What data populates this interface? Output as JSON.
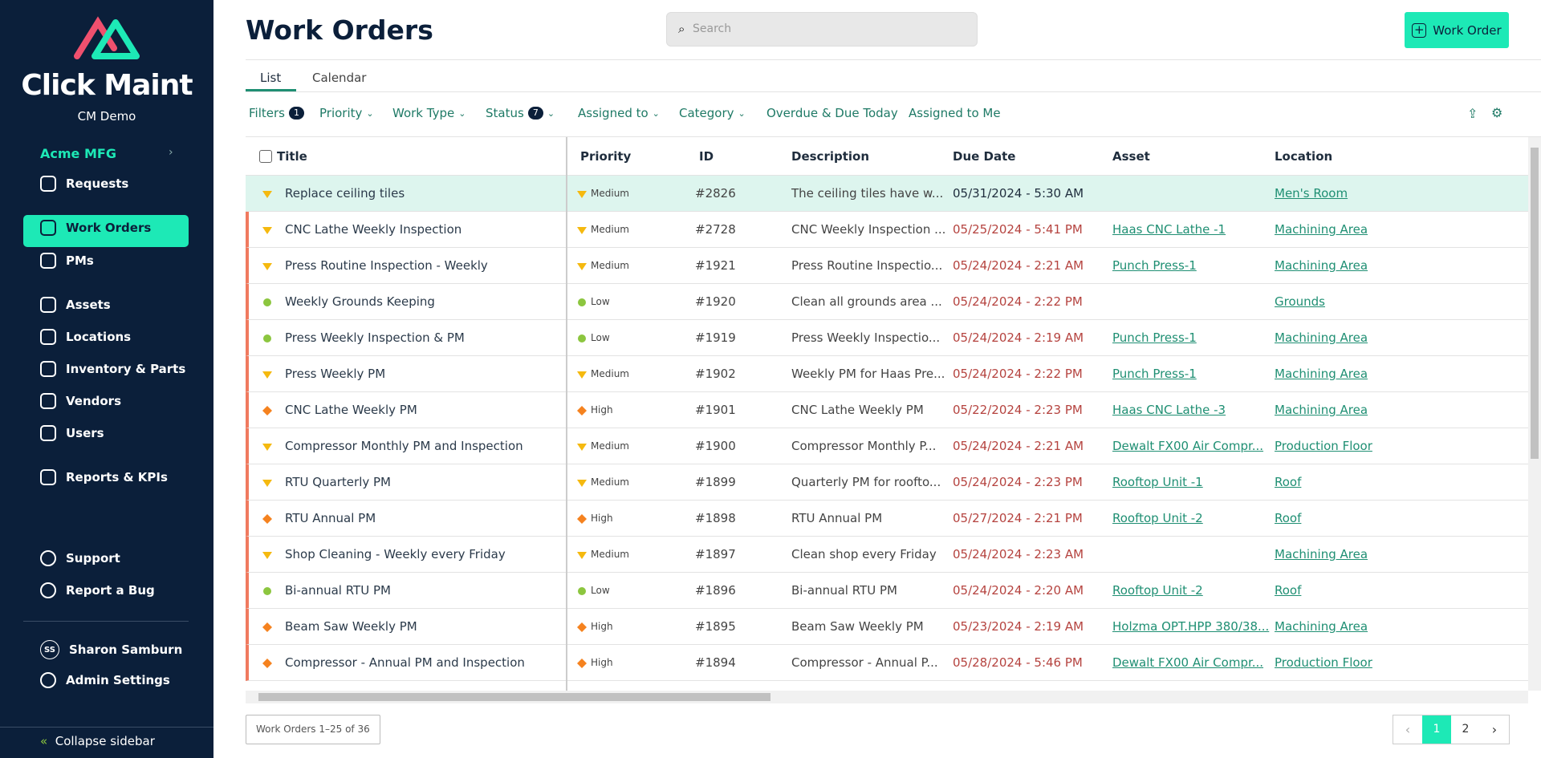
{
  "sidebar": {
    "brand": "Click Maint",
    "org": "CM Demo",
    "site": "Acme MFG",
    "nav": [
      "Requests",
      "Work Orders",
      "PMs",
      "Assets",
      "Locations",
      "Inventory & Parts",
      "Vendors",
      "Users",
      "Reports & KPIs"
    ],
    "active": 1,
    "bottom": [
      "Support",
      "Report a Bug"
    ],
    "user": {
      "initials": "SS",
      "name": "Sharon Samburn"
    },
    "admin": "Admin Settings",
    "collapse": "Collapse sidebar"
  },
  "header": {
    "title": "Work Orders",
    "search_placeholder": "Search",
    "button": "Work Order"
  },
  "tabs": [
    "List",
    "Calendar"
  ],
  "filters": [
    {
      "label": "Filters",
      "badge": 1
    },
    {
      "label": "Priority",
      "dropdown": true
    },
    {
      "label": "Work Type",
      "dropdown": true
    },
    {
      "label": "Status",
      "badge": 7,
      "dropdown": true
    },
    {
      "label": "Assigned to",
      "dropdown": true
    },
    {
      "label": "Category",
      "dropdown": true
    },
    {
      "label": "Overdue & Due Today"
    },
    {
      "label": "Assigned to Me"
    }
  ],
  "priority_levels": [
    {
      "label": "Low",
      "color": "#8cc63f",
      "shape": "circle"
    },
    {
      "label": "Medium",
      "color": "#f5b90f",
      "shape": "triangle"
    },
    {
      "label": "High",
      "color": "#f5821f",
      "shape": "diamond"
    }
  ],
  "table": {
    "columns": [
      "Title",
      "Priority",
      "ID",
      "Description",
      "Due Date",
      "Asset",
      "Location"
    ],
    "selected_row": 0,
    "rows": [
      [
        "Replace ceiling tiles",
        "Medium",
        "#2826",
        "The ceiling tiles have w...",
        "05/31/2024 - 5:30 AM",
        "",
        "Men's Room"
      ],
      [
        "CNC Lathe Weekly Inspection",
        "Medium",
        "#2728",
        "CNC Weekly Inspection ...",
        "05/25/2024 - 5:41 PM",
        "Haas CNC Lathe -1",
        "Machining Area"
      ],
      [
        "Press Routine Inspection - Weekly",
        "Medium",
        "#1921",
        "Press Routine Inspectio...",
        "05/24/2024 - 2:21 AM",
        "Punch Press-1",
        "Machining Area"
      ],
      [
        "Weekly Grounds Keeping",
        "Low",
        "#1920",
        "Clean all grounds area ...",
        "05/24/2024 - 2:22 PM",
        "",
        "Grounds"
      ],
      [
        "Press Weekly Inspection & PM",
        "Low",
        "#1919",
        "Press Weekly Inspectio...",
        "05/24/2024 - 2:19 AM",
        "Punch Press-1",
        "Machining Area"
      ],
      [
        "Press Weekly PM",
        "Medium",
        "#1902",
        "Weekly PM for Haas Pre...",
        "05/24/2024 - 2:22 PM",
        "Punch Press-1",
        "Machining Area"
      ],
      [
        "CNC Lathe Weekly PM",
        "High",
        "#1901",
        "CNC Lathe Weekly PM",
        "05/22/2024 - 2:23 PM",
        "Haas CNC Lathe -3",
        "Machining Area"
      ],
      [
        "Compressor Monthly PM and Inspection",
        "Medium",
        "#1900",
        "Compressor Monthly P...",
        "05/24/2024 - 2:21 AM",
        "Dewalt FX00 Air Compr...",
        "Production Floor"
      ],
      [
        "RTU Quarterly PM",
        "Medium",
        "#1899",
        "Quarterly PM for roofto...",
        "05/24/2024 - 2:23 PM",
        "Rooftop Unit -1",
        "Roof"
      ],
      [
        "RTU Annual PM",
        "High",
        "#1898",
        "RTU Annual PM",
        "05/27/2024 - 2:21 PM",
        "Rooftop Unit -2",
        "Roof"
      ],
      [
        "Shop Cleaning - Weekly every Friday",
        "Medium",
        "#1897",
        "Clean shop every Friday",
        "05/24/2024 - 2:23 AM",
        "",
        "Machining Area"
      ],
      [
        "Bi-annual RTU PM",
        "Low",
        "#1896",
        "Bi-annual RTU PM",
        "05/24/2024 - 2:20 AM",
        "Rooftop Unit -2",
        "Roof"
      ],
      [
        "Beam Saw Weekly PM",
        "High",
        "#1895",
        "Beam Saw Weekly PM",
        "05/23/2024 - 2:19 AM",
        "Holzma OPT.HPP 380/38...",
        "Machining Area"
      ],
      [
        "Compressor - Annual PM and Inspection",
        "High",
        "#1894",
        "Compressor - Annual P...",
        "05/28/2024 - 5:46 PM",
        "Dewalt FX00 Air Compr...",
        "Production Floor"
      ]
    ]
  },
  "footer": {
    "summary": "Work Orders 1–25 of 36",
    "pages": [
      1,
      2
    ],
    "current_page": 0
  }
}
